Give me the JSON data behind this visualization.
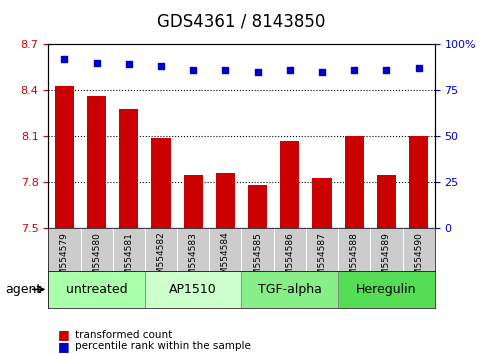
{
  "title": "GDS4361 / 8143850",
  "samples": [
    "GSM554579",
    "GSM554580",
    "GSM554581",
    "GSM554582",
    "GSM554583",
    "GSM554584",
    "GSM554585",
    "GSM554586",
    "GSM554587",
    "GSM554588",
    "GSM554589",
    "GSM554590"
  ],
  "bar_values": [
    8.43,
    8.36,
    8.28,
    8.09,
    7.85,
    7.86,
    7.78,
    8.07,
    7.83,
    8.1,
    7.85,
    8.1
  ],
  "percentile_values": [
    92,
    90,
    89,
    88,
    86,
    86,
    85,
    86,
    85,
    86,
    86,
    87
  ],
  "bar_color": "#cc0000",
  "dot_color": "#0000cc",
  "ylim_left": [
    7.5,
    8.7
  ],
  "ylim_right": [
    0,
    100
  ],
  "yticks_left": [
    7.5,
    7.8,
    8.1,
    8.4,
    8.7
  ],
  "ytick_labels_left": [
    "7.5",
    "7.8",
    "8.1",
    "8.4",
    "8.7"
  ],
  "yticks_right": [
    0,
    25,
    50,
    75,
    100
  ],
  "ytick_labels_right": [
    "0",
    "25",
    "50",
    "75",
    "100%"
  ],
  "hlines": [
    7.8,
    8.1,
    8.4
  ],
  "agents": [
    {
      "label": "untreated",
      "start": 0,
      "end": 3,
      "color": "#aaffaa"
    },
    {
      "label": "AP1510",
      "start": 3,
      "end": 6,
      "color": "#ccffcc"
    },
    {
      "label": "TGF-alpha",
      "start": 6,
      "end": 9,
      "color": "#88ee88"
    },
    {
      "label": "Heregulin",
      "start": 9,
      "end": 12,
      "color": "#55dd55"
    }
  ],
  "agent_label": "agent",
  "legend_bar_label": "transformed count",
  "legend_dot_label": "percentile rank within the sample",
  "bar_width": 0.6,
  "title_fontsize": 12,
  "tick_fontsize": 8,
  "agent_fontsize": 9
}
